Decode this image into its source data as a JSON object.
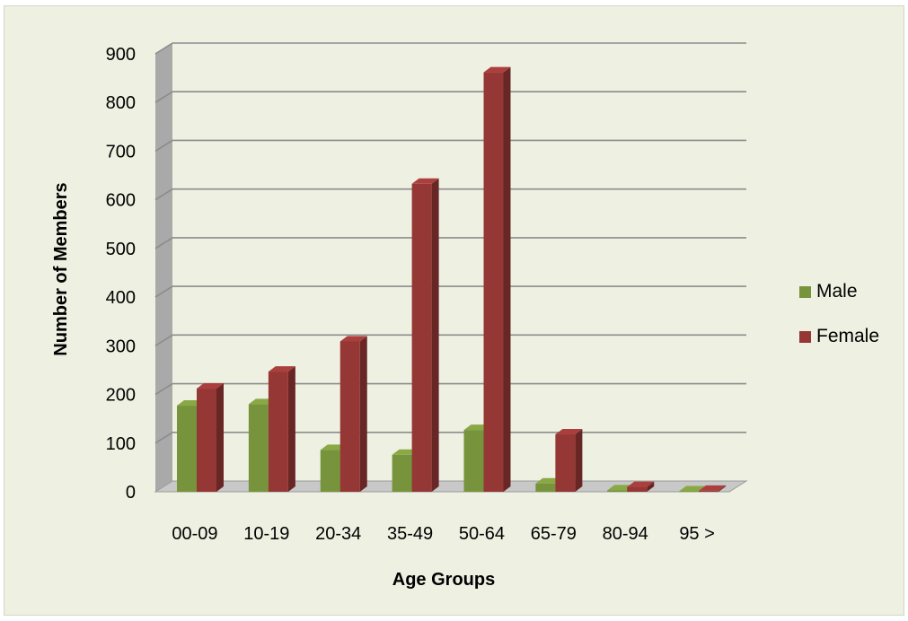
{
  "chart_data": {
    "type": "bar",
    "title": "",
    "xlabel": "Age Groups",
    "ylabel": "Number of Members",
    "categories": [
      "00-09",
      "10-19",
      "20-34",
      "35-49",
      "50-64",
      "65-79",
      "80-94",
      "95 >"
    ],
    "series": [
      {
        "name": "Male",
        "values": [
          177,
          180,
          86,
          76,
          127,
          17,
          3,
          1
        ],
        "color": "#77933C"
      },
      {
        "name": "Female",
        "values": [
          212,
          247,
          309,
          633,
          862,
          118,
          10,
          2
        ],
        "color": "#953735"
      }
    ],
    "ylim": [
      0,
      900
    ],
    "yticks": [
      0,
      100,
      200,
      300,
      400,
      500,
      600,
      700,
      800,
      900
    ],
    "grid": true,
    "legend_position": "right",
    "style": "3d-clustered-column"
  }
}
